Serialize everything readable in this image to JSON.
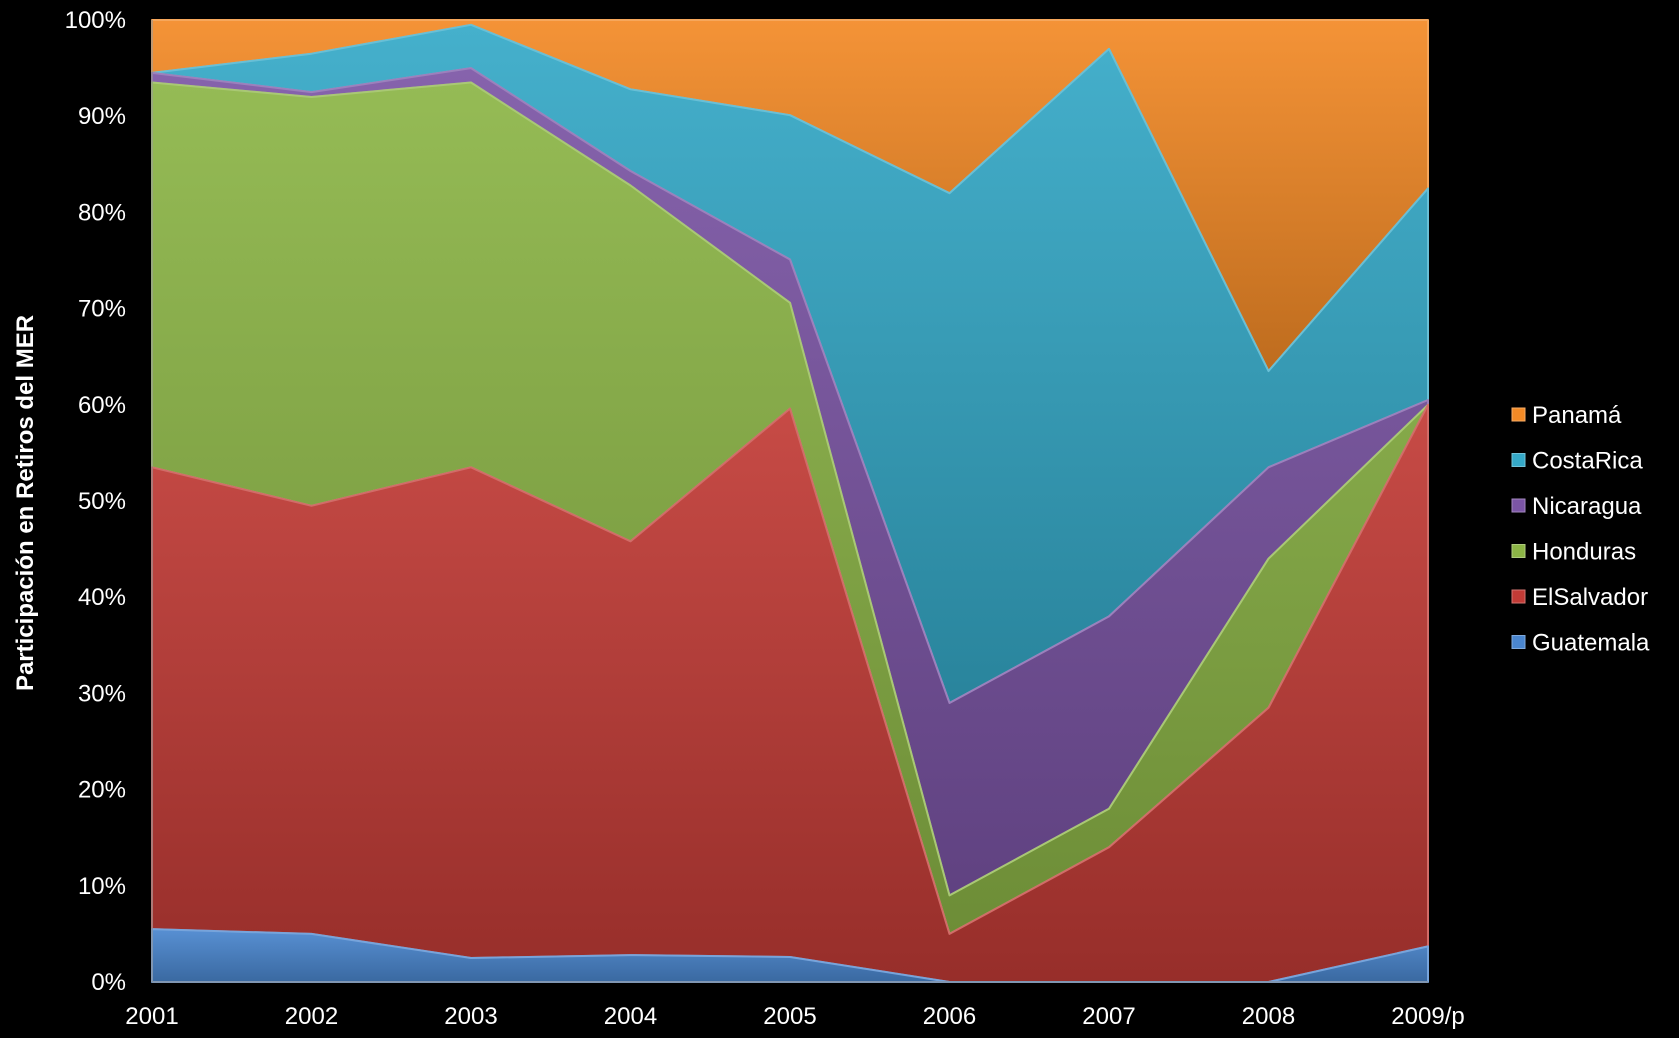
{
  "chart_data": {
    "type": "area",
    "stacked": "percent",
    "categories": [
      "2001",
      "2002",
      "2003",
      "2004",
      "2005",
      "2006",
      "2007",
      "2008",
      "2009/p"
    ],
    "ylabel": "Participación en Retiros del MER",
    "xlabel": "",
    "ylim": [
      0,
      100
    ],
    "y_ticks": [
      "0%",
      "10%",
      "20%",
      "30%",
      "40%",
      "50%",
      "60%",
      "70%",
      "80%",
      "90%",
      "100%"
    ],
    "grid": false,
    "legend_position": "right",
    "series": [
      {
        "name": "Guatemala",
        "color": "#4a86cf",
        "values": [
          5.5,
          5.0,
          2.5,
          2.8,
          2.6,
          0.0,
          0.0,
          0.0,
          3.7
        ]
      },
      {
        "name": "ElSalvador",
        "color": "#c23b36",
        "values": [
          48.0,
          44.5,
          51.0,
          43.0,
          57.0,
          5.0,
          14.0,
          28.5,
          56.3
        ]
      },
      {
        "name": "Honduras",
        "color": "#8cb546",
        "values": [
          40.0,
          42.5,
          40.0,
          37.0,
          11.0,
          4.0,
          4.0,
          15.5,
          0.0
        ]
      },
      {
        "name": "Nicaragua",
        "color": "#7b55a5",
        "values": [
          1.0,
          0.5,
          1.5,
          1.5,
          4.5,
          20.0,
          20.0,
          9.5,
          0.5
        ]
      },
      {
        "name": "CostaRica",
        "color": "#35a9c8",
        "values": [
          0.0,
          4.0,
          4.5,
          8.5,
          15.0,
          53.0,
          59.0,
          10.0,
          22.0
        ]
      },
      {
        "name": "Panamá",
        "color": "#f38a26",
        "values": [
          5.5,
          3.5,
          0.5,
          7.2,
          9.9,
          18.0,
          3.0,
          36.5,
          17.5
        ]
      }
    ]
  }
}
